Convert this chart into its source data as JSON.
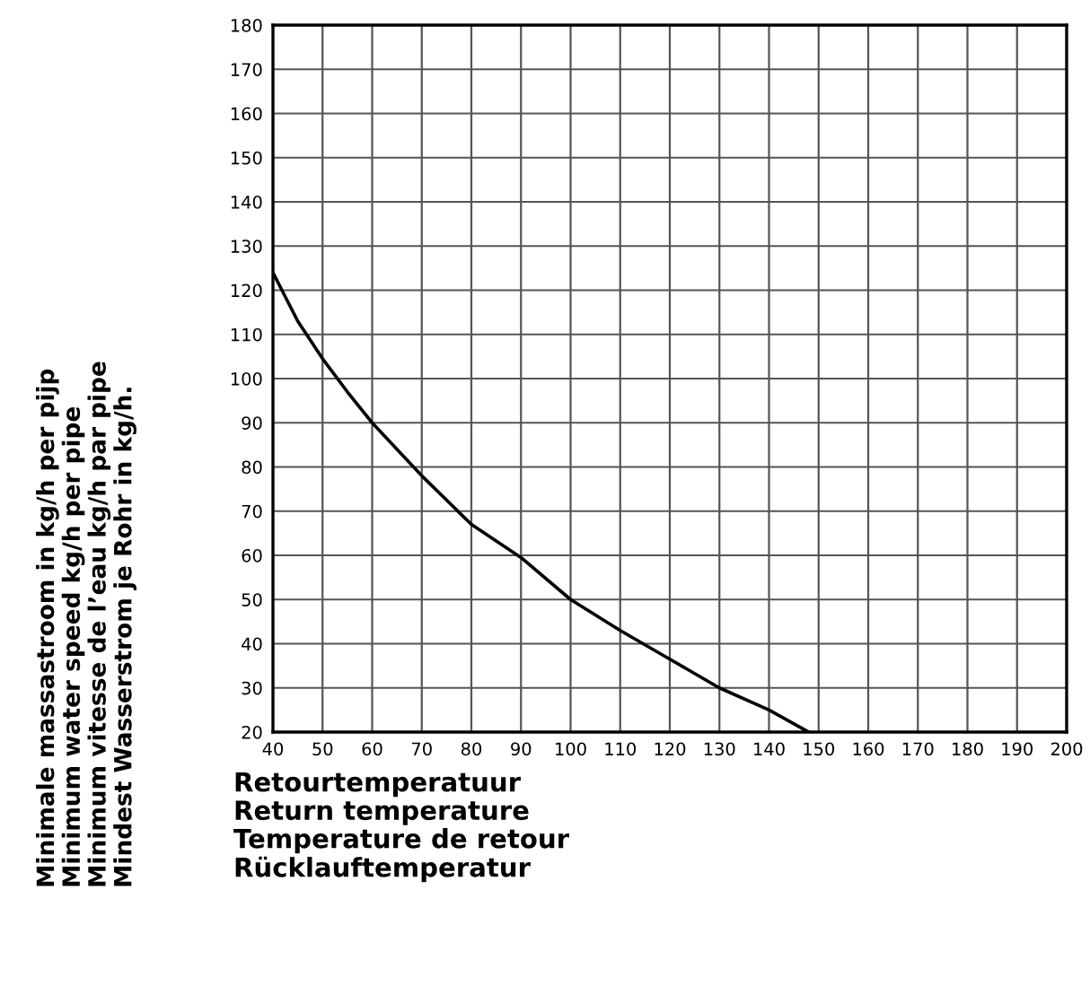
{
  "chart_data": {
    "type": "line",
    "xlabel": "Retourtemperatuur\nReturn temperature\nTemperature de retour\nRücklauftemperatur",
    "ylabel": "Minimale massastroom in kg/h per pijp\nMinimum water speed kg/h per pipe\nMinimum vitesse de l’eau kg/h par pipe\nMindest Wasserstrom je Rohr in kg/h.",
    "series": [
      {
        "color": "#000000",
        "x": [
          40,
          45,
          50,
          55,
          60,
          70,
          80,
          90,
          100,
          110,
          120,
          130,
          140,
          148
        ],
        "values": [
          124,
          113,
          104.5,
          97,
          90,
          78,
          67,
          59.5,
          50,
          43,
          36.5,
          30,
          25,
          20
        ]
      }
    ],
    "xlim": [
      40,
      200
    ],
    "ylim": [
      20,
      180
    ],
    "xticks": [
      40,
      50,
      60,
      70,
      80,
      90,
      100,
      110,
      120,
      130,
      140,
      150,
      160,
      170,
      180,
      190,
      200
    ],
    "yticks": [
      20,
      30,
      40,
      50,
      60,
      70,
      80,
      90,
      100,
      110,
      120,
      130,
      140,
      150,
      160,
      170,
      180
    ],
    "grid": true,
    "legend": false
  }
}
